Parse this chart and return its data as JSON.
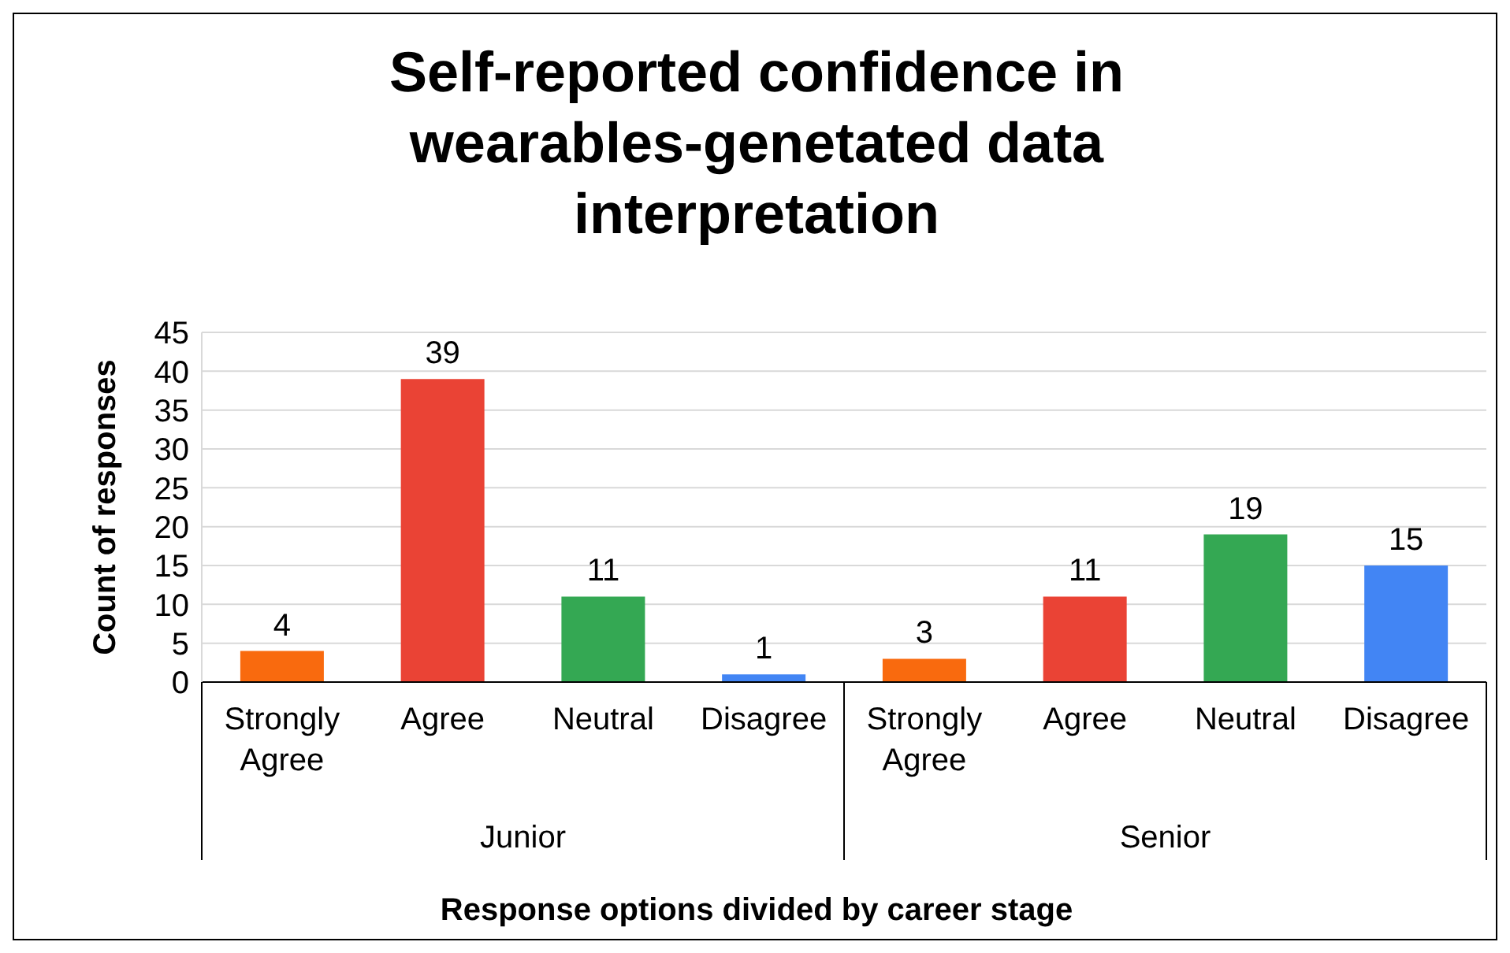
{
  "chart_data": {
    "type": "bar",
    "title": "Self-reported confidence in wearables-genetated data interpretation",
    "xlabel": "Response options divided by career stage",
    "ylabel": "Count of responses",
    "categories": [
      "Strongly Agree",
      "Agree",
      "Neutral",
      "Disagree",
      "Strongly Agree",
      "Agree",
      "Neutral",
      "Disagree"
    ],
    "values": [
      4,
      39,
      11,
      1,
      3,
      11,
      19,
      15
    ],
    "colors": [
      "#f96a0e",
      "#ea4335",
      "#34a853",
      "#4285f4",
      "#f96a0e",
      "#ea4335",
      "#34a853",
      "#4285f4"
    ],
    "annotations": [
      "Junior",
      "Senior"
    ],
    "ylim": [
      0,
      45
    ],
    "yticks": [
      0,
      5,
      10,
      15,
      20,
      25,
      30,
      35,
      40,
      45
    ],
    "grid": "y",
    "data_labels": true,
    "legend": false
  }
}
